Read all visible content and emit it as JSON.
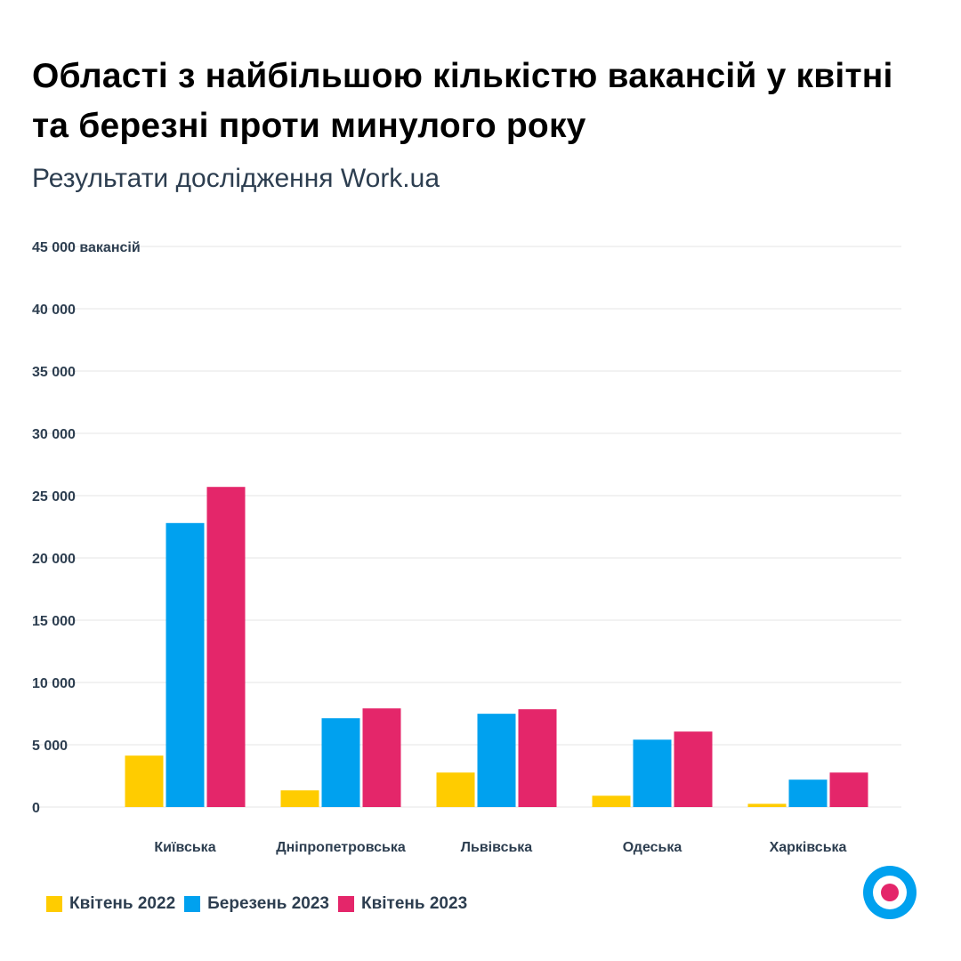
{
  "chart_data": {
    "type": "bar",
    "title": "Області з найбільшою кількістю вакансій у квітні та березні проти минулого року",
    "subtitle": "Результати дослідження Work.ua",
    "ylabel_unit": "вакансій",
    "ylim": [
      0,
      45000
    ],
    "yticks": [
      "0",
      "5 000",
      "10 000",
      "15 000",
      "20 000",
      "25 000",
      "30 000",
      "35 000",
      "40 000",
      "45 000"
    ],
    "grid": true,
    "legend_position": "bottom-left",
    "categories": [
      "Київська",
      "Дніпропетровська",
      "Львівська",
      "Одеська",
      "Харківська"
    ],
    "series": [
      {
        "name": "Квітень 2022",
        "color": "#ffcc00",
        "values": [
          4130,
          1340,
          2770,
          910,
          260
        ]
      },
      {
        "name": "Березень 2023",
        "color": "#00a1ef",
        "values": [
          22800,
          7130,
          7490,
          5410,
          2200
        ]
      },
      {
        "name": "Квітень 2023",
        "color": "#e4266a",
        "values": [
          25700,
          7920,
          7850,
          6060,
          2770
        ]
      }
    ]
  },
  "logo": {
    "name": "work-ua-logo",
    "colors": [
      "#00a1ef",
      "#e4266a"
    ]
  }
}
